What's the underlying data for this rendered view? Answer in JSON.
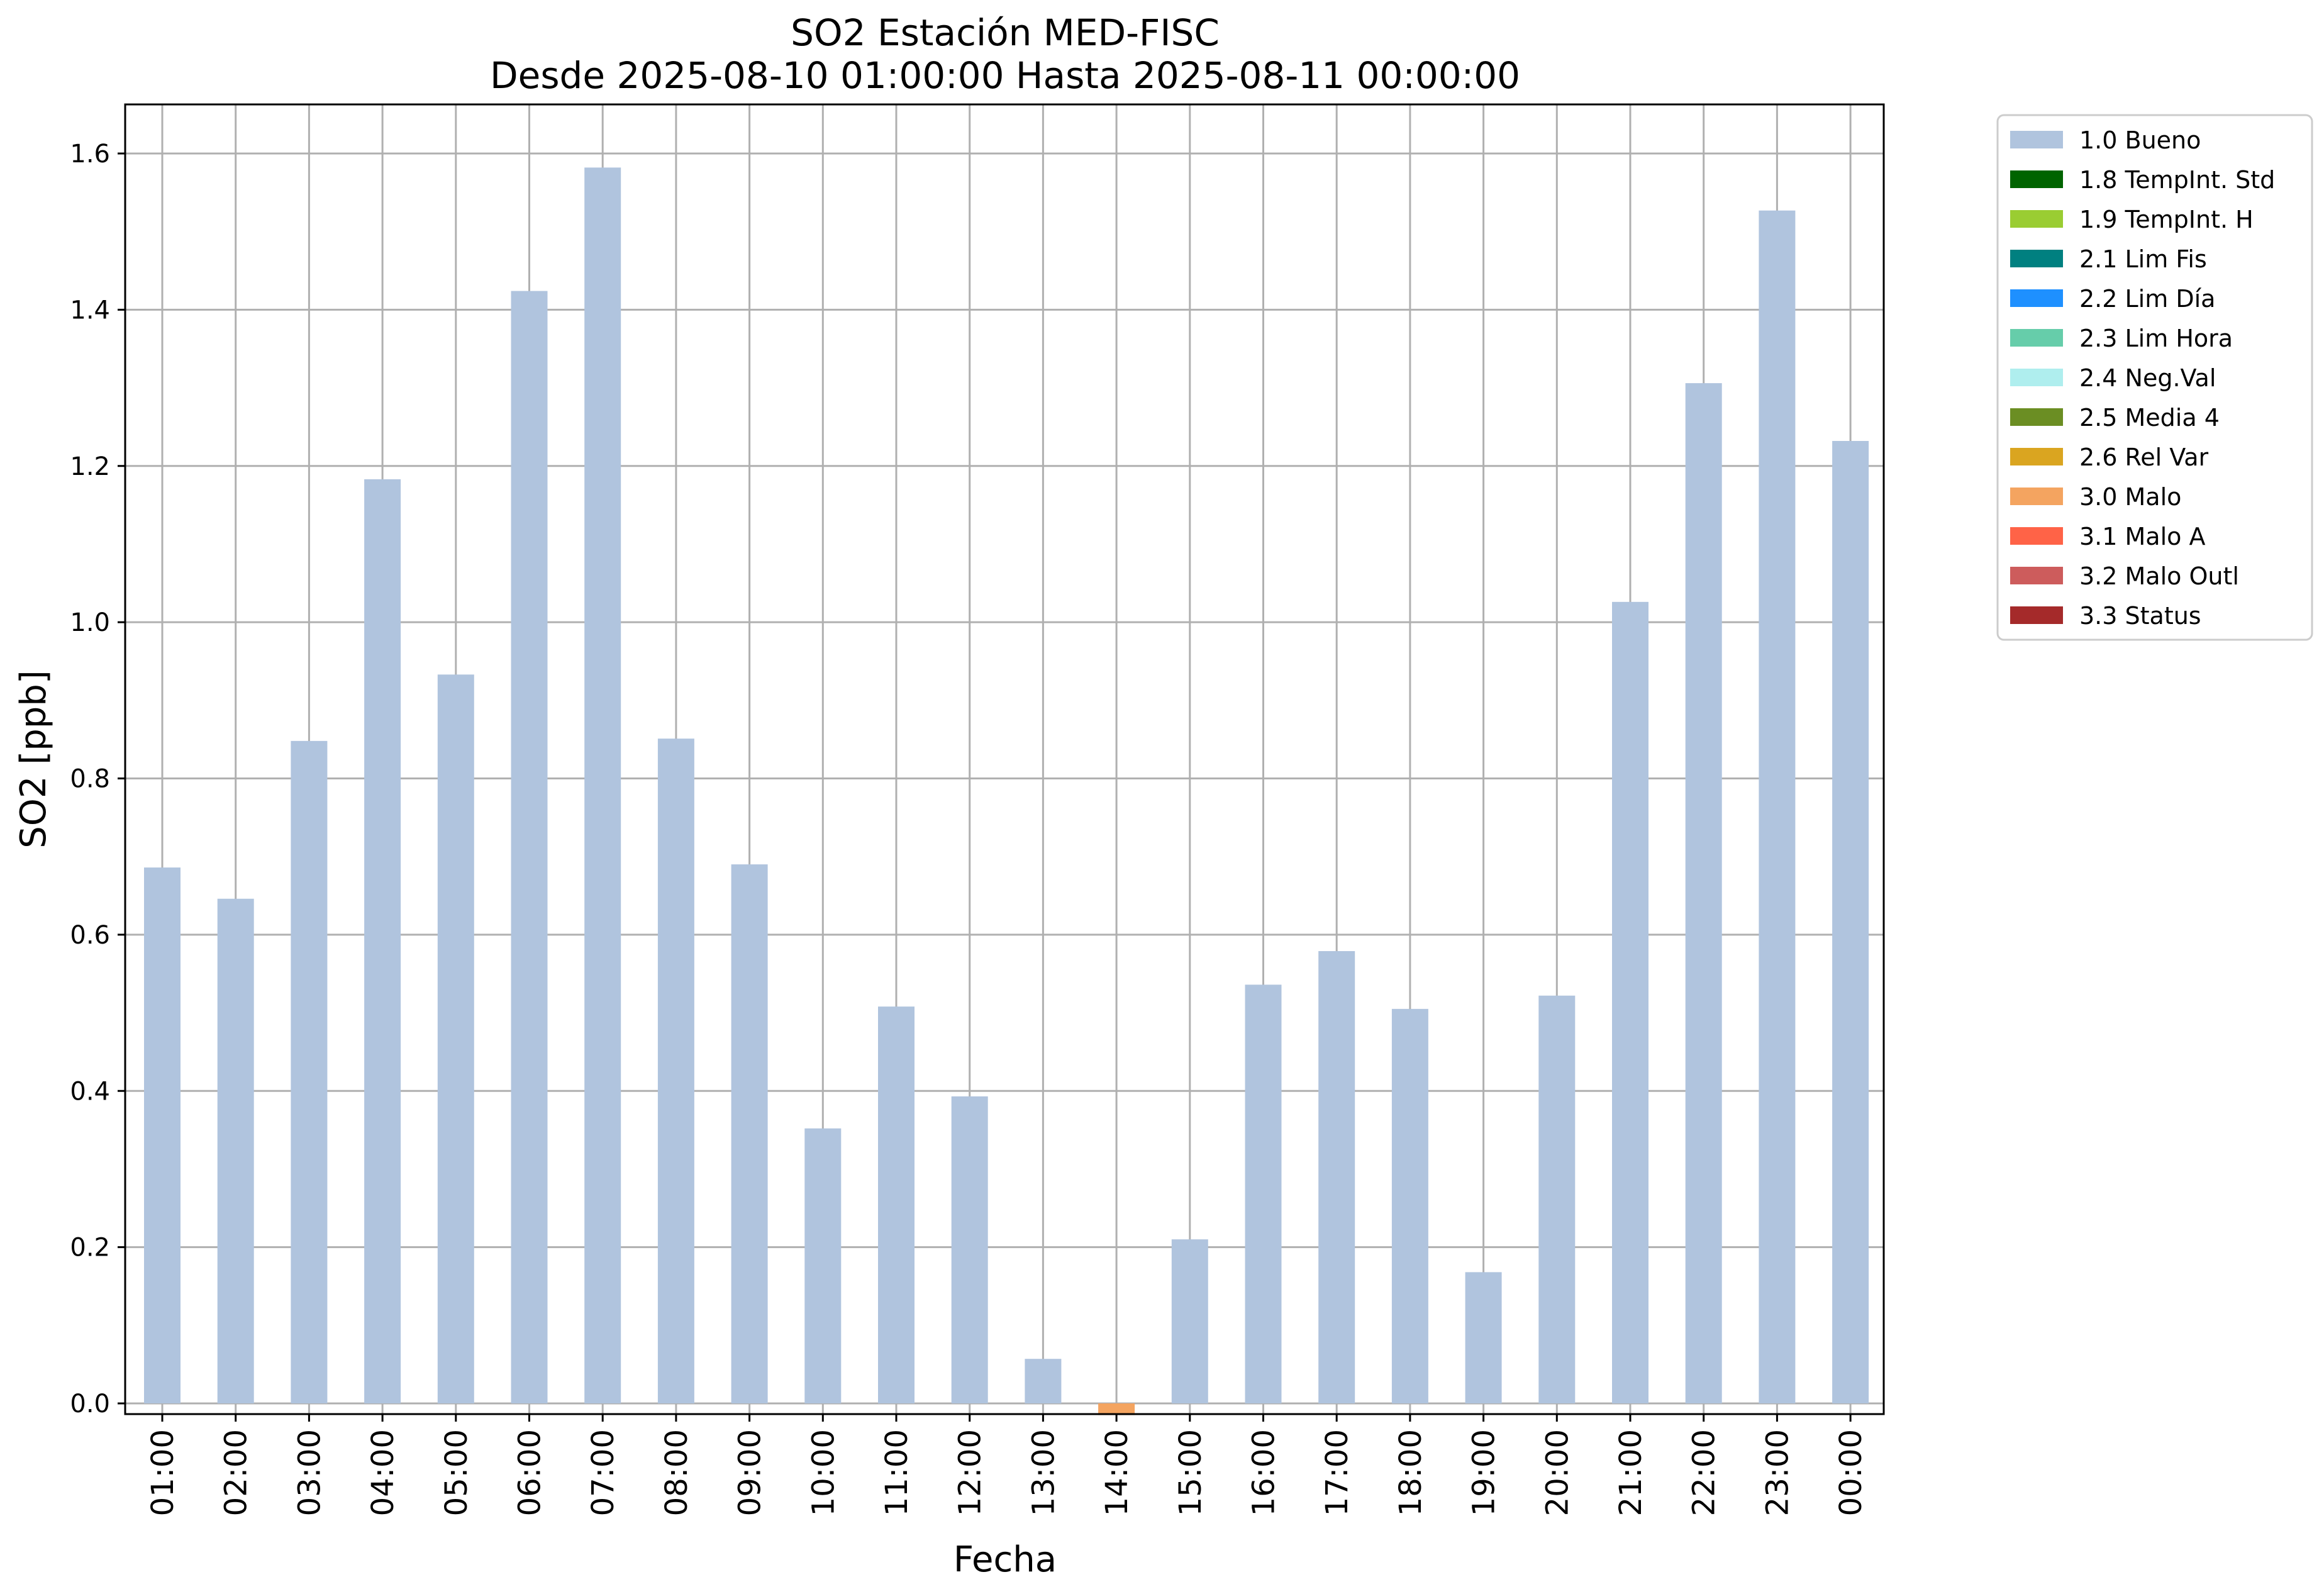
{
  "chart_data": {
    "type": "bar",
    "title": "SO2 Estación MED-FISC",
    "subtitle": "Desde 2025-08-10 01:00:00 Hasta 2025-08-11 00:00:00",
    "xlabel": "Fecha",
    "ylabel": "SO2 [ppb]",
    "ylim": [
      -0.015,
      1.66
    ],
    "yticks": [
      "0.0",
      "0.2",
      "0.4",
      "0.6",
      "0.8",
      "1.0",
      "1.2",
      "1.4",
      "1.6"
    ],
    "grid": true,
    "legend_position": "outside-top-right",
    "categories": [
      "01:00",
      "02:00",
      "03:00",
      "04:00",
      "05:00",
      "06:00",
      "07:00",
      "08:00",
      "09:00",
      "10:00",
      "11:00",
      "12:00",
      "13:00",
      "14:00",
      "15:00",
      "16:00",
      "17:00",
      "18:00",
      "19:00",
      "20:00",
      "21:00",
      "22:00",
      "23:00",
      "00:00"
    ],
    "series": [
      {
        "name": "1.0 Bueno",
        "color": "#b0c4de",
        "values": [
          0.686,
          0.646,
          0.848,
          1.183,
          0.933,
          1.424,
          1.582,
          0.851,
          0.69,
          0.352,
          0.508,
          0.393,
          0.057,
          null,
          0.21,
          0.536,
          0.579,
          0.505,
          0.168,
          0.522,
          1.026,
          1.306,
          1.527,
          1.232
        ]
      },
      {
        "name": "3.0 Malo",
        "color": "#f4a460",
        "values": [
          null,
          null,
          null,
          null,
          null,
          null,
          null,
          null,
          null,
          null,
          null,
          null,
          null,
          -0.015,
          null,
          null,
          null,
          null,
          null,
          null,
          null,
          null,
          null,
          null
        ]
      }
    ],
    "legend": [
      {
        "label": "1.0 Bueno",
        "color": "#b0c4de"
      },
      {
        "label": "1.8 TempInt. Std",
        "color": "#006400"
      },
      {
        "label": "1.9 TempInt. H",
        "color": "#9acd32"
      },
      {
        "label": "2.1 Lim Fis",
        "color": "#008080"
      },
      {
        "label": "2.2 Lim Día",
        "color": "#1e90ff"
      },
      {
        "label": "2.3 Lim Hora",
        "color": "#66cdaa"
      },
      {
        "label": "2.4 Neg.Val",
        "color": "#afeeee"
      },
      {
        "label": "2.5 Media 4",
        "color": "#6b8e23"
      },
      {
        "label": "2.6 Rel Var",
        "color": "#daa520"
      },
      {
        "label": "3.0 Malo",
        "color": "#f4a460"
      },
      {
        "label": "3.1 Malo A",
        "color": "#ff6347"
      },
      {
        "label": "3.2 Malo Outl",
        "color": "#cd5c5c"
      },
      {
        "label": "3.3 Status",
        "color": "#a52a2a"
      }
    ]
  }
}
